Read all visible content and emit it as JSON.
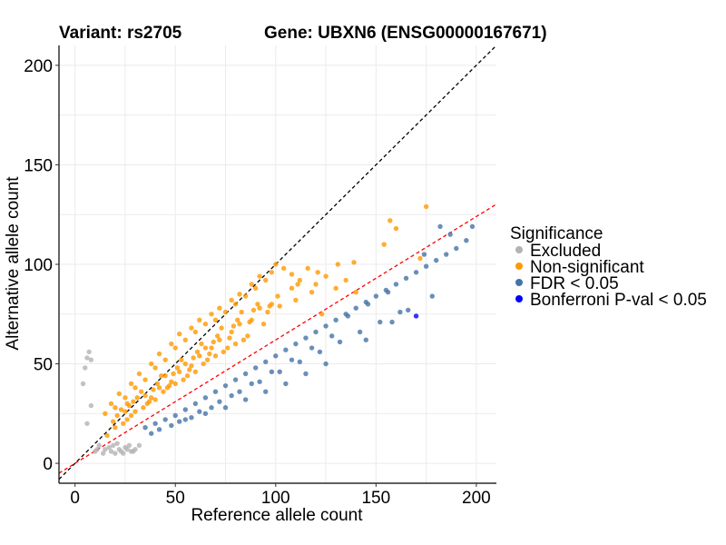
{
  "chart_data": {
    "type": "scatter",
    "title_left": "Variant: rs2705",
    "title_right": "Gene: UBXN6 (ENSG00000167671)",
    "xlabel": "Reference allele count",
    "ylabel": "Alternative allele count",
    "xlim": [
      -8,
      210
    ],
    "ylim": [
      -10,
      210
    ],
    "xticks": [
      0,
      50,
      100,
      150,
      200
    ],
    "yticks": [
      0,
      50,
      100,
      150,
      200
    ],
    "grid": true,
    "legend": {
      "title": "Significance",
      "position": "right",
      "entries": [
        {
          "label": "Excluded",
          "color": "#b3b3b3"
        },
        {
          "label": "Non-significant",
          "color": "#ff9900"
        },
        {
          "label": "FDR < 0.05",
          "color": "#4573a8"
        },
        {
          "label": "Bonferroni P-val < 0.05",
          "color": "#0000ff"
        }
      ]
    },
    "reference_lines": [
      {
        "name": "identity",
        "slope": 1,
        "intercept": 0,
        "color": "#000000",
        "dash": "dashed"
      },
      {
        "name": "fit",
        "slope": 0.62,
        "intercept": 0,
        "color": "#ff0000",
        "dash": "dashed"
      }
    ],
    "series": [
      {
        "name": "Excluded",
        "color": "#b3b3b3",
        "points": [
          [
            7,
            56
          ],
          [
            6,
            53
          ],
          [
            8,
            52
          ],
          [
            5,
            48
          ],
          [
            4,
            40
          ],
          [
            8,
            29
          ],
          [
            6,
            20
          ],
          [
            12,
            9
          ],
          [
            15,
            7
          ],
          [
            18,
            6
          ],
          [
            20,
            5
          ],
          [
            22,
            7
          ],
          [
            25,
            8
          ],
          [
            28,
            6
          ],
          [
            30,
            7
          ],
          [
            32,
            9
          ],
          [
            14,
            5
          ],
          [
            10,
            6
          ],
          [
            17,
            8
          ],
          [
            24,
            5
          ],
          [
            27,
            9
          ],
          [
            29,
            6
          ],
          [
            11,
            7
          ],
          [
            19,
            9
          ],
          [
            23,
            6
          ],
          [
            21,
            10
          ],
          [
            26,
            7
          ]
        ]
      },
      {
        "name": "Non-significant",
        "color": "#ff9900",
        "points": [
          [
            15,
            25
          ],
          [
            18,
            30
          ],
          [
            20,
            28
          ],
          [
            22,
            35
          ],
          [
            25,
            33
          ],
          [
            28,
            40
          ],
          [
            30,
            38
          ],
          [
            32,
            45
          ],
          [
            35,
            42
          ],
          [
            38,
            50
          ],
          [
            40,
            48
          ],
          [
            42,
            55
          ],
          [
            45,
            52
          ],
          [
            48,
            60
          ],
          [
            50,
            58
          ],
          [
            52,
            65
          ],
          [
            55,
            62
          ],
          [
            58,
            68
          ],
          [
            60,
            66
          ],
          [
            62,
            72
          ],
          [
            65,
            70
          ],
          [
            68,
            75
          ],
          [
            70,
            72
          ],
          [
            72,
            78
          ],
          [
            75,
            76
          ],
          [
            78,
            82
          ],
          [
            80,
            80
          ],
          [
            82,
            85
          ],
          [
            85,
            84
          ],
          [
            88,
            90
          ],
          [
            90,
            88
          ],
          [
            92,
            94
          ],
          [
            95,
            92
          ],
          [
            98,
            96
          ],
          [
            100,
            100
          ],
          [
            104,
            98
          ],
          [
            108,
            95
          ],
          [
            112,
            92
          ],
          [
            116,
            98
          ],
          [
            120,
            90
          ],
          [
            125,
            94
          ],
          [
            130,
            88
          ],
          [
            135,
            92
          ],
          [
            140,
            86
          ],
          [
            154,
            110
          ],
          [
            157,
            122
          ],
          [
            160,
            118
          ],
          [
            172,
            103
          ],
          [
            175,
            129
          ],
          [
            139,
            101
          ],
          [
            123,
            75
          ],
          [
            110,
            82
          ],
          [
            102,
            79
          ],
          [
            96,
            76
          ],
          [
            86,
            64
          ],
          [
            76,
            58
          ],
          [
            66,
            52
          ],
          [
            56,
            44
          ],
          [
            46,
            38
          ],
          [
            36,
            30
          ],
          [
            26,
            22
          ],
          [
            20,
            18
          ],
          [
            16,
            14
          ],
          [
            24,
            20
          ],
          [
            34,
            28
          ],
          [
            44,
            36
          ],
          [
            54,
            42
          ],
          [
            64,
            50
          ],
          [
            74,
            56
          ],
          [
            84,
            62
          ],
          [
            94,
            70
          ],
          [
            40,
            32
          ],
          [
            50,
            40
          ],
          [
            60,
            46
          ],
          [
            70,
            54
          ],
          [
            80,
            60
          ],
          [
            30,
            26
          ],
          [
            38,
            33
          ],
          [
            48,
            41
          ],
          [
            58,
            49
          ],
          [
            68,
            58
          ],
          [
            78,
            66
          ],
          [
            88,
            72
          ],
          [
            98,
            80
          ],
          [
            108,
            88
          ],
          [
            118,
            86
          ],
          [
            42,
            38
          ],
          [
            52,
            46
          ],
          [
            62,
            54
          ],
          [
            72,
            62
          ],
          [
            82,
            70
          ],
          [
            92,
            78
          ],
          [
            26,
            30
          ],
          [
            33,
            36
          ],
          [
            43,
            44
          ],
          [
            53,
            52
          ],
          [
            63,
            60
          ],
          [
            73,
            68
          ],
          [
            83,
            76
          ],
          [
            28,
            24
          ],
          [
            37,
            31
          ],
          [
            47,
            39
          ],
          [
            57,
            47
          ],
          [
            67,
            55
          ],
          [
            77,
            63
          ],
          [
            87,
            71
          ],
          [
            97,
            79
          ],
          [
            21,
            24
          ],
          [
            27,
            29
          ],
          [
            31,
            33
          ],
          [
            39,
            37
          ],
          [
            49,
            45
          ],
          [
            59,
            53
          ],
          [
            69,
            61
          ],
          [
            79,
            69
          ],
          [
            89,
            77
          ],
          [
            45,
            44
          ],
          [
            55,
            50
          ],
          [
            65,
            58
          ],
          [
            35,
            34
          ],
          [
            25,
            26
          ],
          [
            19,
            21
          ],
          [
            23,
            27
          ],
          [
            29,
            31
          ],
          [
            41,
            40
          ],
          [
            51,
            48
          ],
          [
            61,
            56
          ],
          [
            71,
            64
          ],
          [
            81,
            72
          ],
          [
            91,
            80
          ],
          [
            101,
            84
          ],
          [
            111,
            90
          ],
          [
            121,
            96
          ],
          [
            131,
            100
          ]
        ]
      },
      {
        "name": "FDR < 0.05",
        "color": "#4573a8",
        "points": [
          [
            35,
            18
          ],
          [
            40,
            20
          ],
          [
            45,
            22
          ],
          [
            50,
            24
          ],
          [
            55,
            27
          ],
          [
            60,
            30
          ],
          [
            65,
            33
          ],
          [
            70,
            36
          ],
          [
            75,
            39
          ],
          [
            80,
            42
          ],
          [
            85,
            45
          ],
          [
            90,
            48
          ],
          [
            95,
            51
          ],
          [
            100,
            54
          ],
          [
            105,
            57
          ],
          [
            110,
            60
          ],
          [
            115,
            63
          ],
          [
            120,
            66
          ],
          [
            125,
            69
          ],
          [
            130,
            72
          ],
          [
            135,
            75
          ],
          [
            140,
            78
          ],
          [
            145,
            81
          ],
          [
            150,
            84
          ],
          [
            155,
            87
          ],
          [
            160,
            90
          ],
          [
            165,
            93
          ],
          [
            170,
            96
          ],
          [
            175,
            99
          ],
          [
            180,
            102
          ],
          [
            185,
            105
          ],
          [
            190,
            108
          ],
          [
            195,
            112
          ],
          [
            198,
            119
          ],
          [
            182,
            119
          ],
          [
            187,
            115
          ],
          [
            174,
            105
          ],
          [
            158,
            71
          ],
          [
            166,
            77
          ],
          [
            145,
            62
          ],
          [
            125,
            50
          ],
          [
            115,
            45
          ],
          [
            105,
            40
          ],
          [
            95,
            36
          ],
          [
            85,
            32
          ],
          [
            75,
            28
          ],
          [
            65,
            25
          ],
          [
            55,
            22
          ],
          [
            48,
            19
          ],
          [
            42,
            17
          ],
          [
            38,
            15
          ],
          [
            52,
            21
          ],
          [
            62,
            26
          ],
          [
            72,
            31
          ],
          [
            82,
            36
          ],
          [
            92,
            41
          ],
          [
            102,
            46
          ],
          [
            112,
            51
          ],
          [
            122,
            56
          ],
          [
            132,
            61
          ],
          [
            142,
            66
          ],
          [
            152,
            71
          ],
          [
            162,
            76
          ],
          [
            178,
            84
          ],
          [
            136,
            74
          ],
          [
            146,
            80
          ],
          [
            156,
            86
          ],
          [
            128,
            64
          ],
          [
            118,
            58
          ],
          [
            108,
            52
          ],
          [
            98,
            46
          ],
          [
            88,
            40
          ],
          [
            78,
            34
          ],
          [
            68,
            28
          ],
          [
            58,
            23
          ]
        ]
      },
      {
        "name": "Bonferroni P-val < 0.05",
        "color": "#0000ff",
        "points": [
          [
            170,
            74
          ]
        ]
      }
    ]
  }
}
